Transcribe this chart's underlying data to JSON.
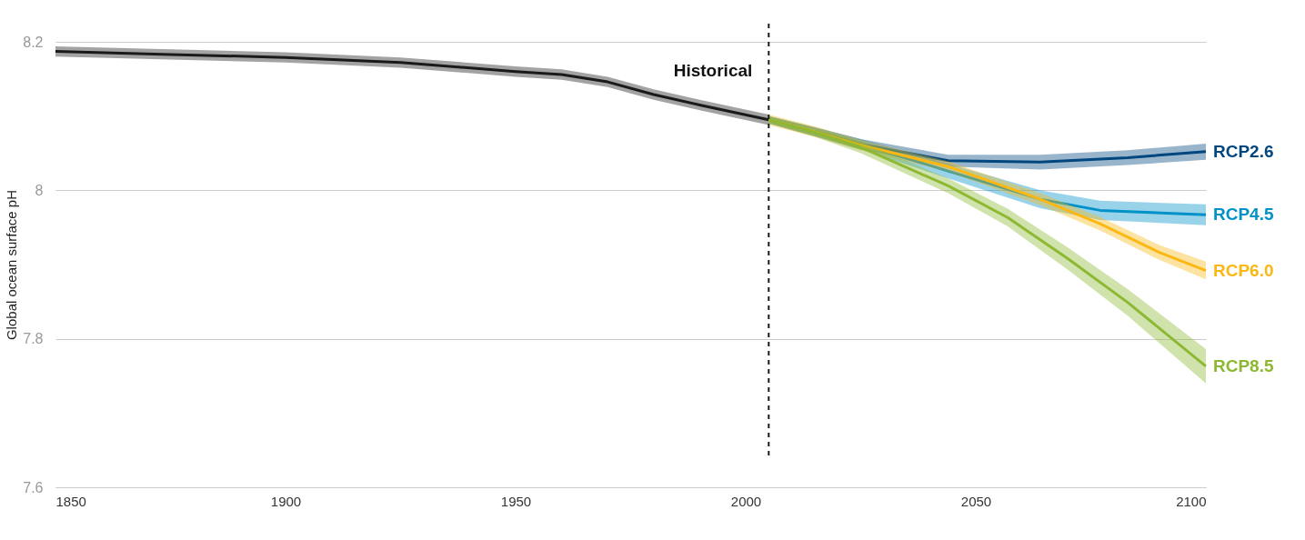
{
  "chart_data": {
    "type": "line",
    "ylabel": "Global ocean surface pH",
    "xlim": [
      1850,
      2100
    ],
    "xticks": [
      1850,
      1900,
      1950,
      2000,
      2050,
      2100
    ],
    "ylim": [
      7.6,
      8.2
    ],
    "yticks": [
      7.6,
      7.8,
      8,
      8.2
    ],
    "grid": "y",
    "legend": false,
    "line_style": "solid",
    "marker": "none",
    "ref_lines": [
      {
        "axis": "x",
        "value": 2005,
        "label": "Historical",
        "color": "#1a1a1a",
        "line_style": "dashed"
      }
    ],
    "series": [
      {
        "color": "#1a1a1a",
        "x": [
          1850,
          1875,
          1900,
          1925,
          1950,
          1960,
          1970,
          1980,
          1990,
          2005
        ],
        "values": [
          8.187,
          8.183,
          8.179,
          8.172,
          8.16,
          8.156,
          8.146,
          8.129,
          8.115,
          8.095
        ],
        "lower": [
          8.18,
          8.176,
          8.172,
          8.165,
          8.153,
          8.149,
          8.139,
          8.122,
          8.108,
          8.088
        ],
        "upper": [
          8.194,
          8.19,
          8.186,
          8.179,
          8.167,
          8.163,
          8.153,
          8.136,
          8.122,
          8.102
        ]
      },
      {
        "name": "RCP2.6",
        "color": "#00467f",
        "x": [
          2005,
          2015,
          2025,
          2044,
          2064,
          2083,
          2100
        ],
        "values": [
          8.095,
          8.079,
          8.062,
          8.04,
          8.038,
          8.044,
          8.052
        ],
        "lower": [
          8.09,
          8.073,
          8.055,
          8.032,
          8.028,
          8.034,
          8.041
        ],
        "upper": [
          8.1,
          8.085,
          8.069,
          8.048,
          8.048,
          8.054,
          8.063
        ]
      },
      {
        "name": "RCP4.5",
        "color": "#0091c8",
        "x": [
          2005,
          2015,
          2025,
          2044,
          2064,
          2077,
          2100
        ],
        "values": [
          null,
          null,
          8.062,
          8.026,
          7.988,
          7.973,
          7.967
        ],
        "lower": [
          8.09,
          8.073,
          8.055,
          8.016,
          7.976,
          7.96,
          7.953
        ],
        "upper": [
          8.1,
          8.085,
          8.069,
          8.036,
          8.0,
          7.986,
          7.981
        ]
      },
      {
        "name": "RCP6.0",
        "color": "#fbb813",
        "x": [
          2005,
          2015,
          2025,
          2044,
          2064,
          2077,
          2090,
          2100
        ],
        "values": [
          8.095,
          8.079,
          8.061,
          8.032,
          7.988,
          7.955,
          7.916,
          7.892
        ],
        "lower": [
          8.088,
          8.072,
          8.054,
          8.025,
          7.98,
          7.946,
          7.906,
          7.88
        ],
        "upper": [
          8.102,
          8.086,
          8.068,
          8.039,
          7.996,
          7.964,
          7.926,
          7.904
        ]
      },
      {
        "name": "RCP8.5",
        "color": "#8cb832",
        "x": [
          2005,
          2015,
          2025,
          2044,
          2057,
          2070,
          2083,
          2100
        ],
        "values": [
          8.095,
          8.078,
          8.058,
          8.006,
          7.963,
          7.908,
          7.849,
          7.763
        ],
        "lower": [
          8.09,
          8.072,
          8.05,
          7.996,
          7.951,
          7.893,
          7.831,
          7.74
        ],
        "upper": [
          8.1,
          8.084,
          8.066,
          8.016,
          7.975,
          7.923,
          7.867,
          7.786
        ]
      }
    ]
  }
}
